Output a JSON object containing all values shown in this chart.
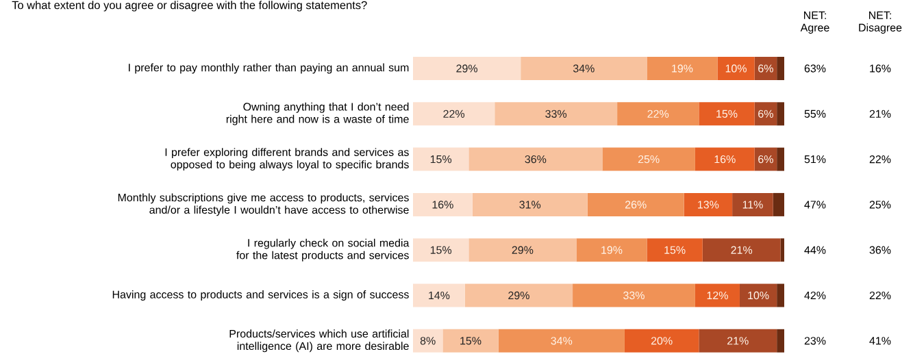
{
  "chart_data": {
    "type": "bar",
    "orientation": "horizontal",
    "stacked": true,
    "title": "To what extent do you agree or disagree with the following statements?",
    "categories": [
      "I prefer to pay monthly rather than paying an annual sum",
      "Owning anything that I don’t need right here and now is a waste of time",
      "I prefer exploring different brands and services as opposed to being always loyal to specific brands",
      "Monthly subscriptions give me access to products, services and/or a lifestyle I wouldn’t have access to otherwise",
      "I regularly check on social media for the latest products and services",
      "Having access to products and services is a sign of success",
      "Products/services which use artificial intelligence (AI) are more desirable"
    ],
    "series": [
      {
        "color": "#fce0cf",
        "values": [
          29,
          22,
          15,
          16,
          15,
          14,
          8
        ],
        "value_labels": [
          "29%",
          "22%",
          "15%",
          "16%",
          "15%",
          "14%",
          "8%"
        ]
      },
      {
        "color": "#f8c29e",
        "values": [
          34,
          33,
          36,
          31,
          29,
          29,
          15
        ],
        "value_labels": [
          "34%",
          "33%",
          "36%",
          "31%",
          "29%",
          "29%",
          "15%"
        ]
      },
      {
        "color": "#f09256",
        "values": [
          19,
          22,
          25,
          26,
          19,
          33,
          34
        ],
        "value_labels": [
          "19%",
          "22%",
          "25%",
          "26%",
          "19%",
          "33%",
          "34%"
        ]
      },
      {
        "color": "#e65e24",
        "values": [
          10,
          15,
          16,
          13,
          15,
          12,
          20
        ],
        "value_labels": [
          "10%",
          "15%",
          "16%",
          "13%",
          "15%",
          "12%",
          "20%"
        ]
      },
      {
        "color": "#a94826",
        "values": [
          6,
          6,
          6,
          11,
          21,
          10,
          21
        ],
        "value_labels": [
          "6%",
          "6%",
          "6%",
          "11%",
          "21%",
          "10%",
          "21%"
        ]
      },
      {
        "color": "#6a2c12",
        "values": [
          2,
          2,
          2,
          3,
          1,
          2,
          2
        ],
        "value_labels": [
          null,
          null,
          null,
          null,
          null,
          null,
          null
        ]
      }
    ],
    "annotations": [
      "NET: Agree",
      "NET: Disagree",
      "63%",
      "16%",
      "55%",
      "21%",
      "51%",
      "22%",
      "47%",
      "25%",
      "44%",
      "36%",
      "42%",
      "22%",
      "23%",
      "41%"
    ]
  }
}
